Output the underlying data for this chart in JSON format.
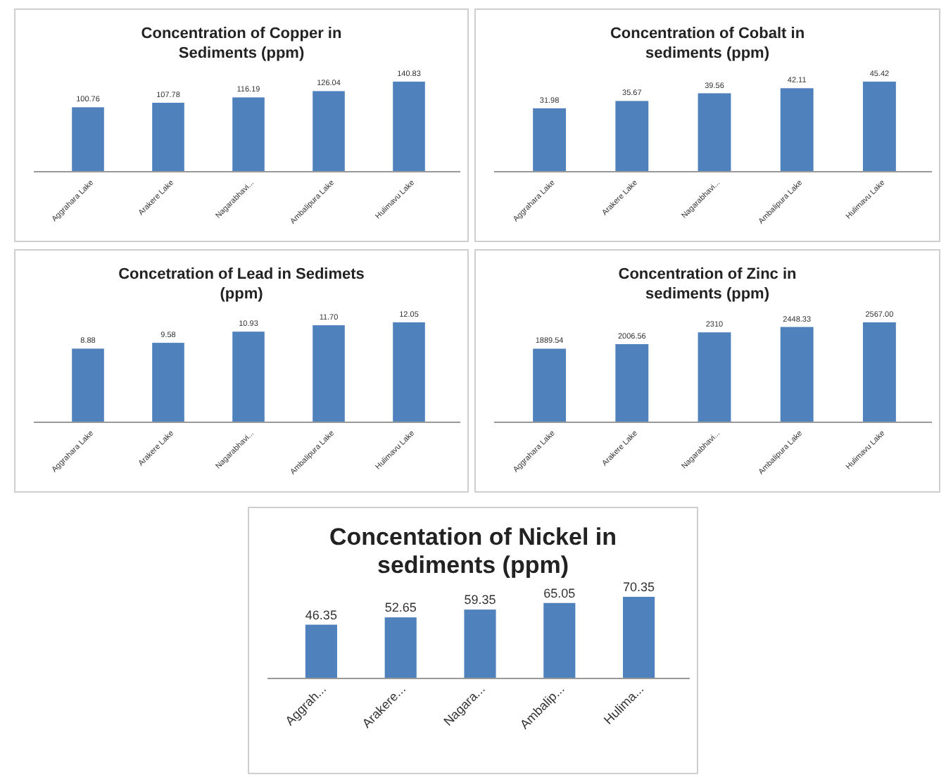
{
  "chart_data": [
    {
      "type": "bar",
      "title": "Concentration of Copper in Sediments (ppm)",
      "categories": [
        "Aggrahara Lake",
        "Arakere Lake",
        "Nagarabhavi...",
        "Ambalipura Lake",
        "Hulimavu Lake"
      ],
      "values": [
        100.76,
        107.78,
        116.19,
        126.04,
        140.83
      ],
      "value_labels": [
        "100.76",
        "107.78",
        "116.19",
        "126.04",
        "140.83"
      ],
      "color": "#4f81bd"
    },
    {
      "type": "bar",
      "title": "Concentration of Cobalt in sediments (ppm)",
      "categories": [
        "Aggrahara Lake",
        "Arakere Lake",
        "Nagarabhavi...",
        "Ambalipura Lake",
        "Hulimavu Lake"
      ],
      "values": [
        31.98,
        35.67,
        39.56,
        42.11,
        45.42
      ],
      "value_labels": [
        "31.98",
        "35.67",
        "39.56",
        "42.11",
        "45.42"
      ],
      "color": "#4f81bd"
    },
    {
      "type": "bar",
      "title": "Concetration of Lead in Sedimets (ppm)",
      "categories": [
        "Aggrahara Lake",
        "Arakere Lake",
        "Nagarabhavi...",
        "Ambalipura Lake",
        "Hulimavu Lake"
      ],
      "values": [
        8.88,
        9.58,
        10.93,
        11.7,
        12.05
      ],
      "value_labels": [
        "8.88",
        "9.58",
        "10.93",
        "11.70",
        "12.05"
      ],
      "color": "#4f81bd"
    },
    {
      "type": "bar",
      "title": "Concentration of Zinc in sediments (ppm)",
      "categories": [
        "Aggrahara Lake",
        "Arakere Lake",
        "Nagarabhavi...",
        "Ambalipura Lake",
        "Hulimavu Lake"
      ],
      "values": [
        1889.54,
        2006.56,
        2310,
        2448.33,
        2567
      ],
      "value_labels": [
        "1889.54",
        "2006.56",
        "2310",
        "2448.33",
        "2567.00"
      ],
      "color": "#4f81bd"
    },
    {
      "type": "bar",
      "title": "Concentation of Nickel in sediments (ppm)",
      "categories": [
        "Aggrah...",
        "Arakere...",
        "Nagara...",
        "Ambalip...",
        "Hulima..."
      ],
      "values": [
        46.35,
        52.65,
        59.35,
        65.05,
        70.35
      ],
      "value_labels": [
        "46.35",
        "52.65",
        "59.35",
        "65.05",
        "70.35"
      ],
      "color": "#4f81bd"
    }
  ]
}
